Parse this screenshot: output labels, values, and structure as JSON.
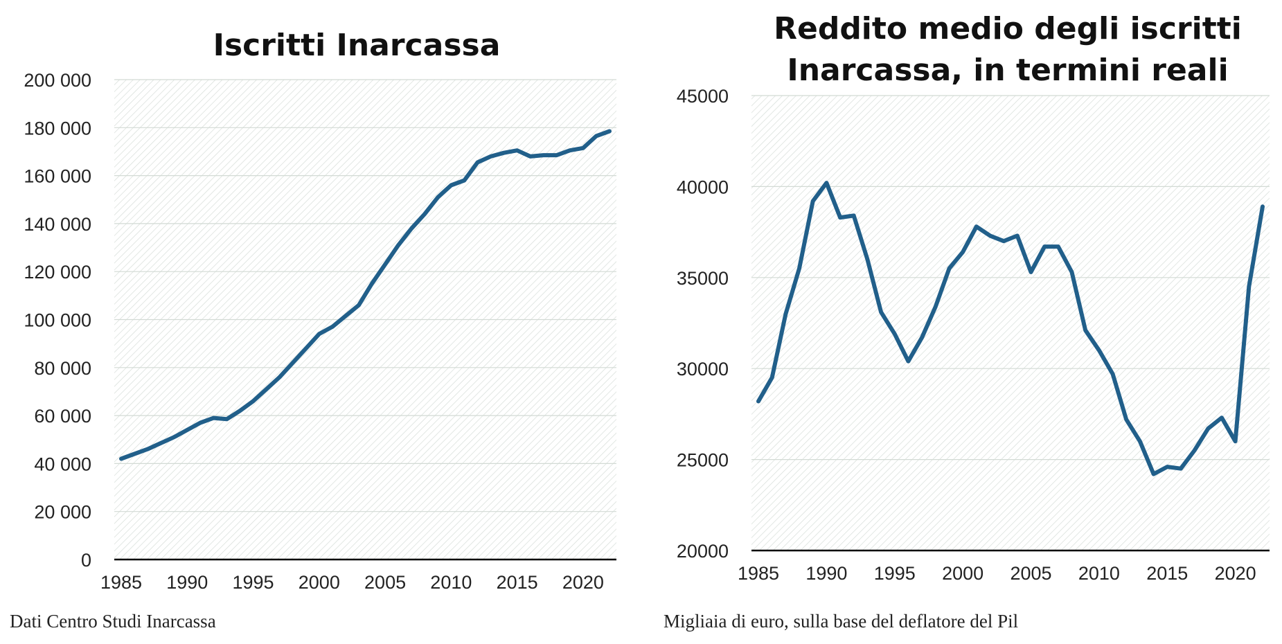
{
  "chart_data": [
    {
      "type": "line",
      "title": "Iscritti Inarcassa",
      "note": "Dati Centro Studi Inarcassa",
      "xlabel": "",
      "ylabel": "",
      "xlim": [
        1985,
        2022
      ],
      "ylim": [
        0,
        200000
      ],
      "x_ticks": [
        "1985",
        "1990",
        "1995",
        "2000",
        "2005",
        "2010",
        "2015",
        "2020"
      ],
      "y_ticks": [
        "0",
        "20 000",
        "40 000",
        "60 000",
        "80 000",
        "100 000",
        "120 000",
        "140 000",
        "160 000",
        "180 000",
        "200 000"
      ],
      "y_tick_values": [
        0,
        20000,
        40000,
        60000,
        80000,
        100000,
        120000,
        140000,
        160000,
        180000,
        200000
      ],
      "grid": true,
      "series": [
        {
          "color": "#215f8a",
          "x": [
            1985,
            1986,
            1987,
            1988,
            1989,
            1990,
            1991,
            1992,
            1993,
            1994,
            1995,
            1996,
            1997,
            1998,
            1999,
            2000,
            2001,
            2002,
            2003,
            2004,
            2005,
            2006,
            2007,
            2008,
            2009,
            2010,
            2011,
            2012,
            2013,
            2014,
            2015,
            2016,
            2017,
            2018,
            2019,
            2020,
            2021,
            2022
          ],
          "values": [
            42000,
            44000,
            46000,
            48500,
            51000,
            54000,
            57000,
            59000,
            58500,
            62000,
            66000,
            71000,
            76000,
            82000,
            88000,
            94000,
            97000,
            101500,
            106000,
            115000,
            123000,
            131000,
            138000,
            144000,
            151000,
            156000,
            158000,
            165500,
            168000,
            169500,
            170500,
            168000,
            168500,
            168500,
            170500,
            171500,
            176500,
            178500
          ]
        }
      ]
    },
    {
      "type": "line",
      "title": "Reddito medio degli iscritti Inarcassa, in termini reali",
      "note": "Migliaia  di euro, sulla base del deflatore del Pil",
      "xlabel": "",
      "ylabel": "",
      "xlim": [
        1985,
        2022
      ],
      "ylim": [
        20000,
        45000
      ],
      "x_ticks": [
        "1985",
        "1990",
        "1995",
        "2000",
        "2005",
        "2010",
        "2015",
        "2020"
      ],
      "y_ticks": [
        "20000",
        "25000",
        "30000",
        "35000",
        "40000",
        "45000"
      ],
      "y_tick_values": [
        20000,
        25000,
        30000,
        35000,
        40000,
        45000
      ],
      "grid": true,
      "series": [
        {
          "color": "#215f8a",
          "x": [
            1985,
            1986,
            1987,
            1988,
            1989,
            1990,
            1991,
            1992,
            1993,
            1994,
            1995,
            1996,
            1997,
            1998,
            1999,
            2000,
            2001,
            2002,
            2003,
            2004,
            2005,
            2006,
            2007,
            2008,
            2009,
            2010,
            2011,
            2012,
            2013,
            2014,
            2015,
            2016,
            2017,
            2018,
            2019,
            2020,
            2021,
            2022
          ],
          "values": [
            28200,
            29500,
            33000,
            35500,
            39200,
            40200,
            38300,
            38400,
            36000,
            33100,
            31900,
            30400,
            31700,
            33400,
            35500,
            36400,
            37800,
            37300,
            37000,
            37300,
            35300,
            36700,
            36700,
            35300,
            32100,
            31000,
            29700,
            27200,
            26000,
            24200,
            24600,
            24500,
            25500,
            26700,
            27300,
            26000,
            34500,
            38900
          ]
        }
      ]
    }
  ]
}
